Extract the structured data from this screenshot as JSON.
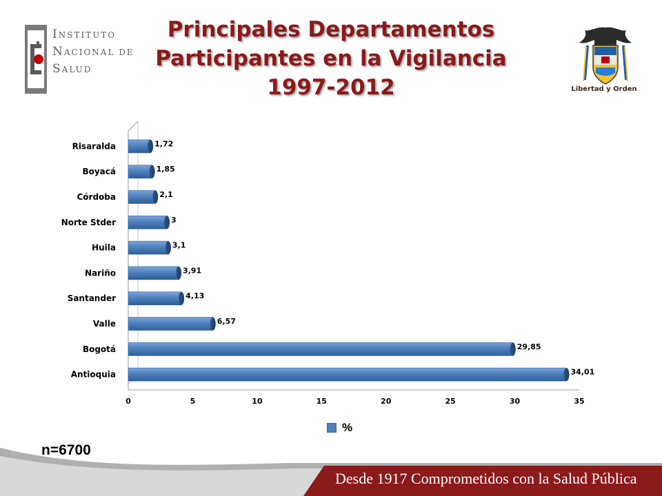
{
  "header": {
    "title_lines": [
      "Principales Departamentos",
      "Participantes en la Vigilancia",
      "1997-2012"
    ]
  },
  "logo_left": {
    "lines": [
      {
        "initial": "I",
        "rest": "NSTITUTO"
      },
      {
        "initial": "N",
        "rest": "ACIONAL DE"
      },
      {
        "initial": "S",
        "rest": "ALUD"
      }
    ],
    "icon": "instituto-nacional-de-salud-logo"
  },
  "logo_right": {
    "caption": "Libertad y Orden",
    "icon": "colombia-coat-of-arms"
  },
  "chart_data": {
    "type": "bar",
    "orientation": "horizontal",
    "categories": [
      "Risaralda",
      "Boyacá",
      "Córdoba",
      "Norte Stder",
      "Huila",
      "Nariño",
      "Santander",
      "Valle",
      "Bogotá",
      "Antioquia"
    ],
    "series": [
      {
        "name": "%",
        "values": [
          1.72,
          1.85,
          2.1,
          3,
          3.1,
          3.91,
          4.13,
          6.57,
          29.85,
          34.01
        ],
        "labels": [
          "1,72",
          "1,85",
          "2,1",
          "3",
          "3,1",
          "3,91",
          "4,13",
          "6,57",
          "29,85",
          "34,01"
        ]
      }
    ],
    "xlim": [
      0,
      35
    ],
    "xticks": [
      "0",
      "5",
      "10",
      "15",
      "20",
      "25",
      "30",
      "35"
    ],
    "grid": false,
    "legend_position": "bottom",
    "bar_color": "#4f81bd"
  },
  "legend": {
    "label": "%"
  },
  "sample": {
    "label": "n=6700"
  },
  "footer": {
    "text": "Desde 1917 Comprometidos con la Salud Pública",
    "color": "#8b1a1a"
  }
}
